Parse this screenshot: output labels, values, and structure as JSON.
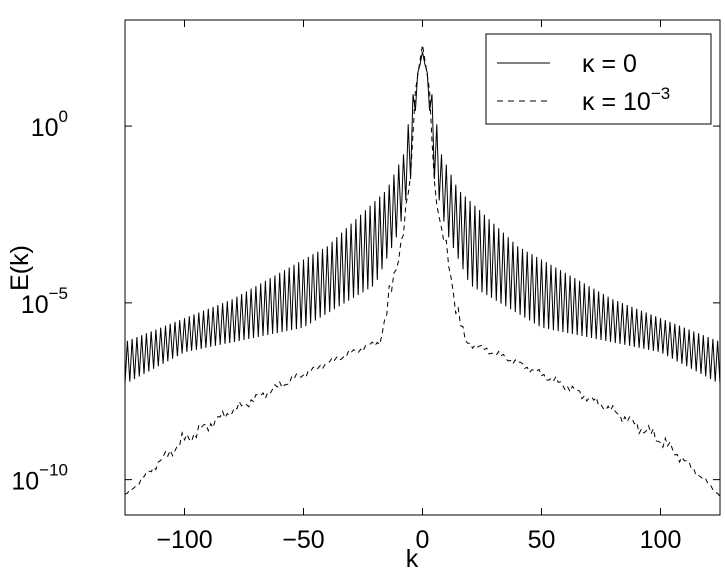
{
  "chart_data": {
    "type": "line",
    "xlabel": "k",
    "ylabel": "E(k)",
    "xlim": [
      -125,
      125
    ],
    "ylim_log10": [
      -11,
      3
    ],
    "yscale": "log",
    "grid": false,
    "legend_position": "top-right",
    "x_ticks": [
      -100,
      -50,
      0,
      50,
      100
    ],
    "x_tick_labels": [
      "−100",
      "−50",
      "0",
      "50",
      "100"
    ],
    "y_ticks": [
      {
        "mantissa": "10",
        "exponent": "0",
        "log10": 0
      },
      {
        "mantissa": "10",
        "exponent": "−5",
        "log10": -5
      },
      {
        "mantissa": "10",
        "exponent": "−10",
        "log10": -10
      }
    ],
    "legend": [
      {
        "greek": "κ",
        "text": " = 0"
      },
      {
        "greek": "κ",
        "text": " = 10",
        "exponent": "−3"
      }
    ],
    "series": [
      {
        "style": "solid",
        "label_index": 0,
        "envelope_log10": {
          "upper": [
            [
              0,
              2.1
            ],
            [
              4,
              0.9
            ],
            [
              8,
              -0.8
            ],
            [
              15,
              -1.8
            ],
            [
              40,
              -3.4
            ],
            [
              80,
              -4.9
            ],
            [
              125,
              -6.1
            ]
          ],
          "lower": [
            [
              0,
              2.1
            ],
            [
              2,
              1.4
            ],
            [
              5,
              -1.5
            ],
            [
              10,
              -3.0
            ],
            [
              20,
              -4.5
            ],
            [
              50,
              -5.7
            ],
            [
              100,
              -6.4
            ],
            [
              125,
              -7.3
            ]
          ]
        }
      },
      {
        "style": "dashed",
        "label_index": 1,
        "envelope_log10": {
          "upper": [
            [
              0,
              2.3
            ],
            [
              3,
              1.0
            ],
            [
              5,
              -1.0
            ],
            [
              8,
              -2.8
            ],
            [
              10,
              -3.2
            ],
            [
              14,
              -4.5
            ],
            [
              18,
              -6.0
            ],
            [
              30,
              -6.3
            ],
            [
              60,
              -7.2
            ],
            [
              100,
              -8.6
            ],
            [
              125,
              -10.4
            ]
          ],
          "lower": [
            [
              0,
              2.3
            ],
            [
              3,
              1.0
            ],
            [
              5,
              -2.0
            ],
            [
              8,
              -3.2
            ],
            [
              12,
              -4.6
            ],
            [
              15,
              -5.8
            ],
            [
              18,
              -6.2
            ],
            [
              40,
              -6.8
            ],
            [
              80,
              -8.2
            ],
            [
              110,
              -9.6
            ],
            [
              125,
              -10.5
            ]
          ]
        }
      }
    ]
  }
}
